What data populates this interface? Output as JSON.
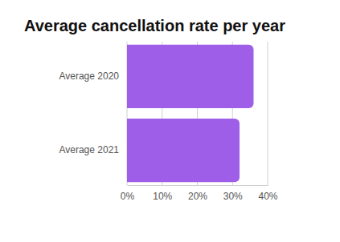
{
  "chart_data": {
    "type": "bar",
    "title": "Average cancellation rate per year",
    "orientation": "horizontal",
    "categories": [
      "Average 2020",
      "Average 2021"
    ],
    "values": [
      36,
      32
    ],
    "color": "#9f5ee8",
    "xlim": [
      0,
      40
    ],
    "xticks": [
      {
        "value": 0,
        "label": "0%"
      },
      {
        "value": 10,
        "label": "10%"
      },
      {
        "value": 20,
        "label": "20%"
      },
      {
        "value": 30,
        "label": "30%"
      },
      {
        "value": 40,
        "label": "40%"
      }
    ],
    "grid": true
  }
}
